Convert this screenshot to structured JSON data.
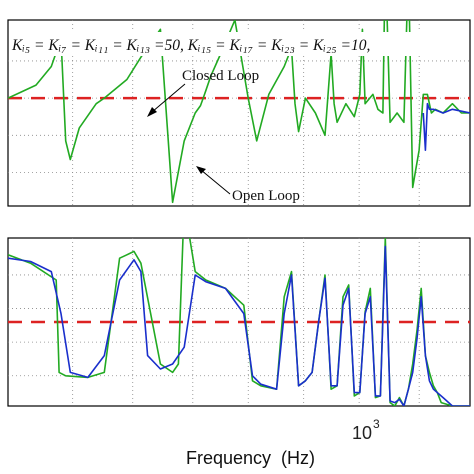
{
  "chart_data": [
    {
      "type": "line",
      "title": "",
      "xlabel": "",
      "ylabel": "",
      "xscale": "log",
      "xlim": [
        200,
        1400
      ],
      "ylim": [
        0,
        1
      ],
      "grid": true,
      "legend": "none",
      "annotations": [
        {
          "text": "Kᵢ₅ = Kᵢ₇ = Kᵢ₁₁ = Kᵢ₁₃ =50, Kᵢ₁₅ = Kᵢ₁₇ = Kᵢ₂₃ = Kᵢ₂₅ =10,",
          "role": "gain-note"
        },
        {
          "text": "Closed Loop",
          "role": "series-callout"
        },
        {
          "text": "Open Loop",
          "role": "series-callout"
        }
      ],
      "threshold": {
        "y": 0.58,
        "color": "#dd2222",
        "style": "dashed"
      },
      "series": [
        {
          "color": "#22aa22",
          "x": [
            200,
            225,
            240,
            250,
            255,
            260,
            270,
            290,
            300,
            330,
            350,
            380,
            400,
            420,
            440,
            450,
            455,
            460,
            470,
            490,
            520,
            550,
            570,
            600,
            640,
            660,
            670,
            680,
            700,
            730,
            760,
            780,
            790,
            800,
            830,
            860,
            880,
            890,
            900,
            930,
            950,
            970,
            980,
            1000,
            1030,
            1060,
            1080,
            1100,
            1130,
            1150,
            1170,
            1190,
            1210,
            1250,
            1300,
            1350,
            1400
          ],
          "y": [
            0.58,
            0.65,
            0.75,
            0.9,
            0.35,
            0.25,
            0.42,
            0.55,
            0.58,
            0.68,
            0.8,
            0.95,
            0.02,
            0.35,
            0.5,
            0.54,
            0.58,
            0.62,
            0.7,
            0.82,
            1.0,
            0.58,
            0.35,
            0.6,
            0.75,
            0.85,
            0.55,
            0.4,
            0.58,
            0.5,
            0.38,
            0.82,
            0.55,
            0.45,
            0.55,
            0.48,
            0.6,
            0.95,
            0.55,
            0.6,
            0.52,
            0.5,
            1.35,
            0.45,
            0.5,
            0.45,
            1.3,
            0.1,
            0.3,
            0.6,
            0.6,
            0.5,
            0.52,
            0.5,
            0.55,
            0.5,
            0.5
          ]
        },
        {
          "color": "#1a2fcc",
          "x": [
            1150,
            1160,
            1170,
            1180,
            1200,
            1250,
            1300,
            1400
          ],
          "y": [
            0.5,
            0.3,
            0.55,
            0.52,
            0.52,
            0.5,
            0.52,
            0.5
          ]
        }
      ]
    },
    {
      "type": "line",
      "title": "",
      "xlabel": "Frequency  (Hz)",
      "ylabel": "",
      "xscale": "log",
      "xlim": [
        200,
        1400
      ],
      "xticks": [
        {
          "value": 1000,
          "label": "10",
          "exponent": "3"
        }
      ],
      "ylim": [
        0,
        1
      ],
      "grid": true,
      "legend": "none",
      "threshold": {
        "y": 0.5,
        "color": "#dd2222",
        "style": "dashed"
      },
      "series": [
        {
          "color": "#22aa22",
          "x": [
            200,
            220,
            245,
            248,
            255,
            280,
            300,
            320,
            330,
            340,
            350,
            380,
            400,
            410,
            420,
            440,
            460,
            500,
            540,
            560,
            580,
            620,
            640,
            660,
            680,
            700,
            720,
            740,
            760,
            780,
            800,
            820,
            840,
            860,
            880,
            900,
            920,
            940,
            960,
            980,
            1000,
            1020,
            1040,
            1060,
            1080,
            1100,
            1120,
            1140,
            1160,
            1180,
            1200,
            1220,
            1240,
            1300,
            1350,
            1400
          ],
          "y": [
            0.9,
            0.85,
            0.75,
            0.2,
            0.18,
            0.17,
            0.2,
            0.88,
            0.9,
            0.92,
            0.85,
            0.25,
            0.2,
            0.25,
            1.2,
            0.8,
            0.75,
            0.7,
            0.6,
            0.15,
            0.12,
            0.1,
            0.65,
            0.8,
            0.12,
            0.15,
            0.2,
            0.5,
            0.78,
            0.1,
            0.12,
            0.65,
            0.72,
            0.06,
            0.08,
            0.56,
            0.7,
            0.05,
            0.06,
            1.0,
            0.02,
            0.0,
            0.05,
            0.0,
            0.1,
            0.25,
            0.45,
            0.7,
            0.3,
            0.2,
            0.12,
            0.08,
            0.02,
            0.0,
            0.0,
            0.0
          ]
        },
        {
          "color": "#1a2fcc",
          "x": [
            200,
            220,
            240,
            250,
            260,
            280,
            300,
            320,
            340,
            350,
            360,
            380,
            400,
            420,
            440,
            460,
            500,
            540,
            560,
            580,
            620,
            640,
            660,
            680,
            700,
            720,
            740,
            760,
            780,
            800,
            820,
            840,
            860,
            880,
            900,
            920,
            940,
            960,
            980,
            1000,
            1020,
            1040,
            1060,
            1080,
            1100,
            1120,
            1140,
            1160,
            1180,
            1200,
            1250,
            1300,
            1400
          ],
          "y": [
            0.88,
            0.86,
            0.8,
            0.55,
            0.2,
            0.17,
            0.3,
            0.75,
            0.87,
            0.8,
            0.3,
            0.22,
            0.25,
            0.35,
            0.78,
            0.74,
            0.7,
            0.55,
            0.18,
            0.13,
            0.1,
            0.55,
            0.78,
            0.12,
            0.15,
            0.2,
            0.5,
            0.76,
            0.12,
            0.12,
            0.6,
            0.7,
            0.08,
            0.08,
            0.55,
            0.65,
            0.06,
            0.06,
            0.95,
            0.03,
            0.02,
            0.04,
            0.0,
            0.1,
            0.2,
            0.4,
            0.65,
            0.3,
            0.15,
            0.1,
            0.05,
            0.0,
            0.0
          ]
        }
      ]
    }
  ]
}
